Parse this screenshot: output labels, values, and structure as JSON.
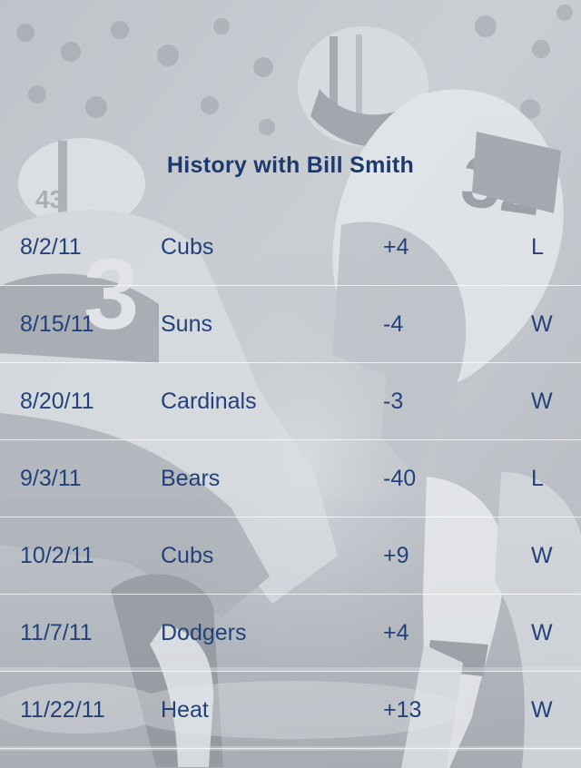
{
  "title": "History with Bill Smith",
  "history": [
    {
      "date": "8/2/11",
      "team": "Cubs",
      "spread": "+4",
      "result": "L"
    },
    {
      "date": "8/15/11",
      "team": "Suns",
      "spread": "-4",
      "result": "W"
    },
    {
      "date": "8/20/11",
      "team": "Cardinals",
      "spread": "-3",
      "result": "W"
    },
    {
      "date": "9/3/11",
      "team": "Bears",
      "spread": "-40",
      "result": "L"
    },
    {
      "date": "10/2/11",
      "team": "Cubs",
      "spread": "+9",
      "result": "W"
    },
    {
      "date": "11/7/11",
      "team": "Dodgers",
      "spread": "+4",
      "result": "W"
    },
    {
      "date": "11/22/11",
      "team": "Heat",
      "spread": "+13",
      "result": "W"
    }
  ],
  "colors": {
    "text": "#24427a",
    "divider": "#ffffff"
  },
  "background": {
    "jersey_numbers": [
      "43",
      "32",
      "3"
    ]
  }
}
